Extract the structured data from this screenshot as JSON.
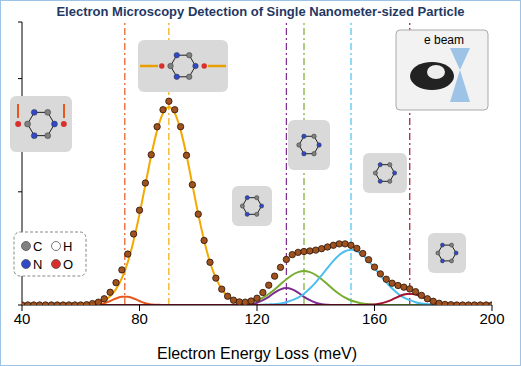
{
  "chart_data": {
    "type": "line",
    "title": "Electron Microscopy Detection of Single Nanometer-sized Particle",
    "xlabel": "Electron Energy Loss (meV)",
    "xlim": [
      40,
      200
    ],
    "xticks": [
      40,
      80,
      120,
      160,
      200
    ],
    "ylim": [
      0,
      1
    ],
    "yticks": [
      0,
      0.2,
      0.4,
      0.6,
      0.8,
      1
    ],
    "tick_labels": "x",
    "grid": false,
    "x": [
      40,
      42,
      44,
      46,
      48,
      50,
      52,
      54,
      56,
      58,
      60,
      62,
      64,
      66,
      68,
      70,
      72,
      74,
      76,
      78,
      80,
      82,
      84,
      86,
      88,
      90,
      92,
      94,
      96,
      98,
      100,
      102,
      104,
      106,
      108,
      110,
      112,
      114,
      116,
      118,
      120,
      122,
      124,
      126,
      128,
      130,
      132,
      134,
      136,
      138,
      140,
      142,
      144,
      146,
      148,
      150,
      152,
      154,
      156,
      158,
      160,
      162,
      164,
      166,
      168,
      170,
      172,
      174,
      176,
      178,
      180,
      182,
      184,
      186,
      188,
      190,
      192,
      194,
      196,
      198,
      200
    ],
    "series": [
      {
        "color": "#a0521e",
        "marker": "circle",
        "line_style": "none",
        "values": [
          0,
          0,
          0,
          0,
          0,
          0,
          0,
          0,
          0,
          0,
          0,
          0.001,
          0.005,
          0.01,
          0.022,
          0.045,
          0.079,
          0.124,
          0.18,
          0.251,
          0.335,
          0.431,
          0.531,
          0.63,
          0.69,
          0.72,
          0.69,
          0.63,
          0.529,
          0.425,
          0.321,
          0.228,
          0.151,
          0.095,
          0.056,
          0.031,
          0.017,
          0.011,
          0.01,
          0.014,
          0.024,
          0.044,
          0.07,
          0.102,
          0.133,
          0.161,
          0.178,
          0.186,
          0.189,
          0.191,
          0.194,
          0.199,
          0.205,
          0.211,
          0.216,
          0.216,
          0.211,
          0.2,
          0.182,
          0.16,
          0.134,
          0.11,
          0.091,
          0.077,
          0.069,
          0.063,
          0.057,
          0.047,
          0.034,
          0.022,
          0.013,
          0.006,
          0.002,
          0.001,
          0,
          0,
          0,
          0,
          0,
          0,
          0
        ]
      },
      {
        "color": "#e8581c",
        "line_style": "solid",
        "center": 75,
        "values": [
          0,
          0,
          0,
          0,
          0,
          0,
          0,
          0,
          0,
          0,
          0,
          0,
          0.001,
          0.002,
          0.006,
          0.014,
          0.023,
          0.029,
          0.029,
          0.023,
          0.014,
          0.006,
          0.002,
          0.001,
          0,
          0,
          0,
          0,
          0,
          0,
          0,
          0,
          0,
          0,
          0,
          0,
          0,
          0,
          0,
          0,
          0,
          0,
          0,
          0,
          0,
          0,
          0,
          0,
          0,
          0,
          0,
          0,
          0,
          0,
          0,
          0,
          0,
          0,
          0,
          0,
          0,
          0,
          0,
          0,
          0,
          0,
          0,
          0,
          0,
          0,
          0,
          0,
          0,
          0,
          0,
          0,
          0,
          0,
          0,
          0,
          0
        ]
      },
      {
        "color": "#f5a800",
        "line_style": "solid",
        "center": 90,
        "values": [
          0,
          0,
          0,
          0,
          0,
          0,
          0,
          0,
          0,
          0,
          0,
          0.001,
          0.004,
          0.008,
          0.016,
          0.031,
          0.056,
          0.095,
          0.151,
          0.228,
          0.321,
          0.425,
          0.529,
          0.617,
          0.678,
          0.7,
          0.678,
          0.617,
          0.529,
          0.425,
          0.321,
          0.228,
          0.151,
          0.095,
          0.056,
          0.031,
          0.016,
          0.008,
          0.004,
          0.001,
          0,
          0,
          0,
          0,
          0,
          0,
          0,
          0,
          0,
          0,
          0,
          0,
          0,
          0,
          0,
          0,
          0,
          0,
          0,
          0,
          0,
          0,
          0,
          0,
          0,
          0,
          0,
          0,
          0,
          0,
          0,
          0,
          0,
          0,
          0,
          0,
          0,
          0,
          0,
          0,
          0
        ]
      },
      {
        "color": "#7b2d8e",
        "line_style": "solid",
        "center": 130,
        "values": [
          0,
          0,
          0,
          0,
          0,
          0,
          0,
          0,
          0,
          0,
          0,
          0,
          0,
          0,
          0,
          0,
          0,
          0,
          0,
          0,
          0,
          0,
          0,
          0,
          0,
          0,
          0,
          0,
          0,
          0,
          0,
          0,
          0,
          0,
          0,
          0,
          0,
          0,
          0.001,
          0.003,
          0.008,
          0.017,
          0.029,
          0.044,
          0.055,
          0.06,
          0.055,
          0.044,
          0.029,
          0.017,
          0.008,
          0.003,
          0.001,
          0,
          0,
          0,
          0,
          0,
          0,
          0,
          0,
          0,
          0,
          0,
          0,
          0,
          0,
          0,
          0,
          0,
          0,
          0,
          0,
          0,
          0,
          0,
          0,
          0,
          0,
          0,
          0
        ]
      },
      {
        "color": "#77ac30",
        "line_style": "solid",
        "center": 136,
        "values": [
          0,
          0,
          0,
          0,
          0,
          0,
          0,
          0,
          0,
          0,
          0,
          0,
          0,
          0,
          0,
          0,
          0,
          0,
          0,
          0,
          0,
          0,
          0,
          0,
          0,
          0,
          0,
          0,
          0,
          0,
          0,
          0,
          0,
          0,
          0,
          0,
          0.001,
          0.003,
          0.005,
          0.01,
          0.016,
          0.026,
          0.039,
          0.055,
          0.073,
          0.091,
          0.106,
          0.116,
          0.12,
          0.116,
          0.106,
          0.091,
          0.073,
          0.055,
          0.039,
          0.026,
          0.016,
          0.01,
          0.005,
          0.003,
          0.001,
          0,
          0,
          0,
          0,
          0,
          0,
          0,
          0,
          0,
          0,
          0,
          0,
          0,
          0,
          0,
          0,
          0,
          0,
          0,
          0
        ]
      },
      {
        "color": "#4dbeee",
        "line_style": "solid",
        "center": 152,
        "values": [
          0,
          0,
          0,
          0,
          0,
          0,
          0,
          0,
          0,
          0,
          0,
          0,
          0,
          0,
          0,
          0,
          0,
          0,
          0,
          0,
          0,
          0,
          0,
          0,
          0,
          0,
          0,
          0,
          0,
          0,
          0,
          0,
          0,
          0,
          0,
          0,
          0,
          0,
          0,
          0,
          0,
          0.001,
          0.002,
          0.003,
          0.005,
          0.01,
          0.017,
          0.026,
          0.04,
          0.058,
          0.08,
          0.105,
          0.131,
          0.156,
          0.177,
          0.19,
          0.195,
          0.19,
          0.177,
          0.156,
          0.131,
          0.105,
          0.08,
          0.058,
          0.04,
          0.026,
          0.017,
          0.01,
          0.005,
          0.003,
          0.002,
          0.001,
          0,
          0,
          0,
          0,
          0,
          0,
          0,
          0,
          0
        ]
      },
      {
        "color": "#a2142f",
        "line_style": "solid",
        "center": 172,
        "values": [
          0,
          0,
          0,
          0,
          0,
          0,
          0,
          0,
          0,
          0,
          0,
          0,
          0,
          0,
          0,
          0,
          0,
          0,
          0,
          0,
          0,
          0,
          0,
          0,
          0,
          0,
          0,
          0,
          0,
          0,
          0,
          0,
          0,
          0,
          0,
          0,
          0,
          0,
          0,
          0,
          0,
          0,
          0,
          0,
          0,
          0,
          0,
          0,
          0,
          0,
          0,
          0,
          0,
          0,
          0,
          0,
          0,
          0,
          0,
          0.001,
          0.002,
          0.005,
          0.011,
          0.019,
          0.029,
          0.037,
          0.04,
          0.037,
          0.029,
          0.019,
          0.011,
          0.005,
          0.002,
          0.001,
          0,
          0,
          0,
          0,
          0,
          0,
          0
        ]
      }
    ],
    "annotations": [
      {
        "text": "C",
        "color": "#808080"
      },
      {
        "text": "H",
        "color": "#ffffff"
      },
      {
        "text": "N",
        "color": "#2f49c8"
      },
      {
        "text": "O",
        "color": "#d9302b"
      },
      {
        "text": "e beam"
      }
    ]
  }
}
